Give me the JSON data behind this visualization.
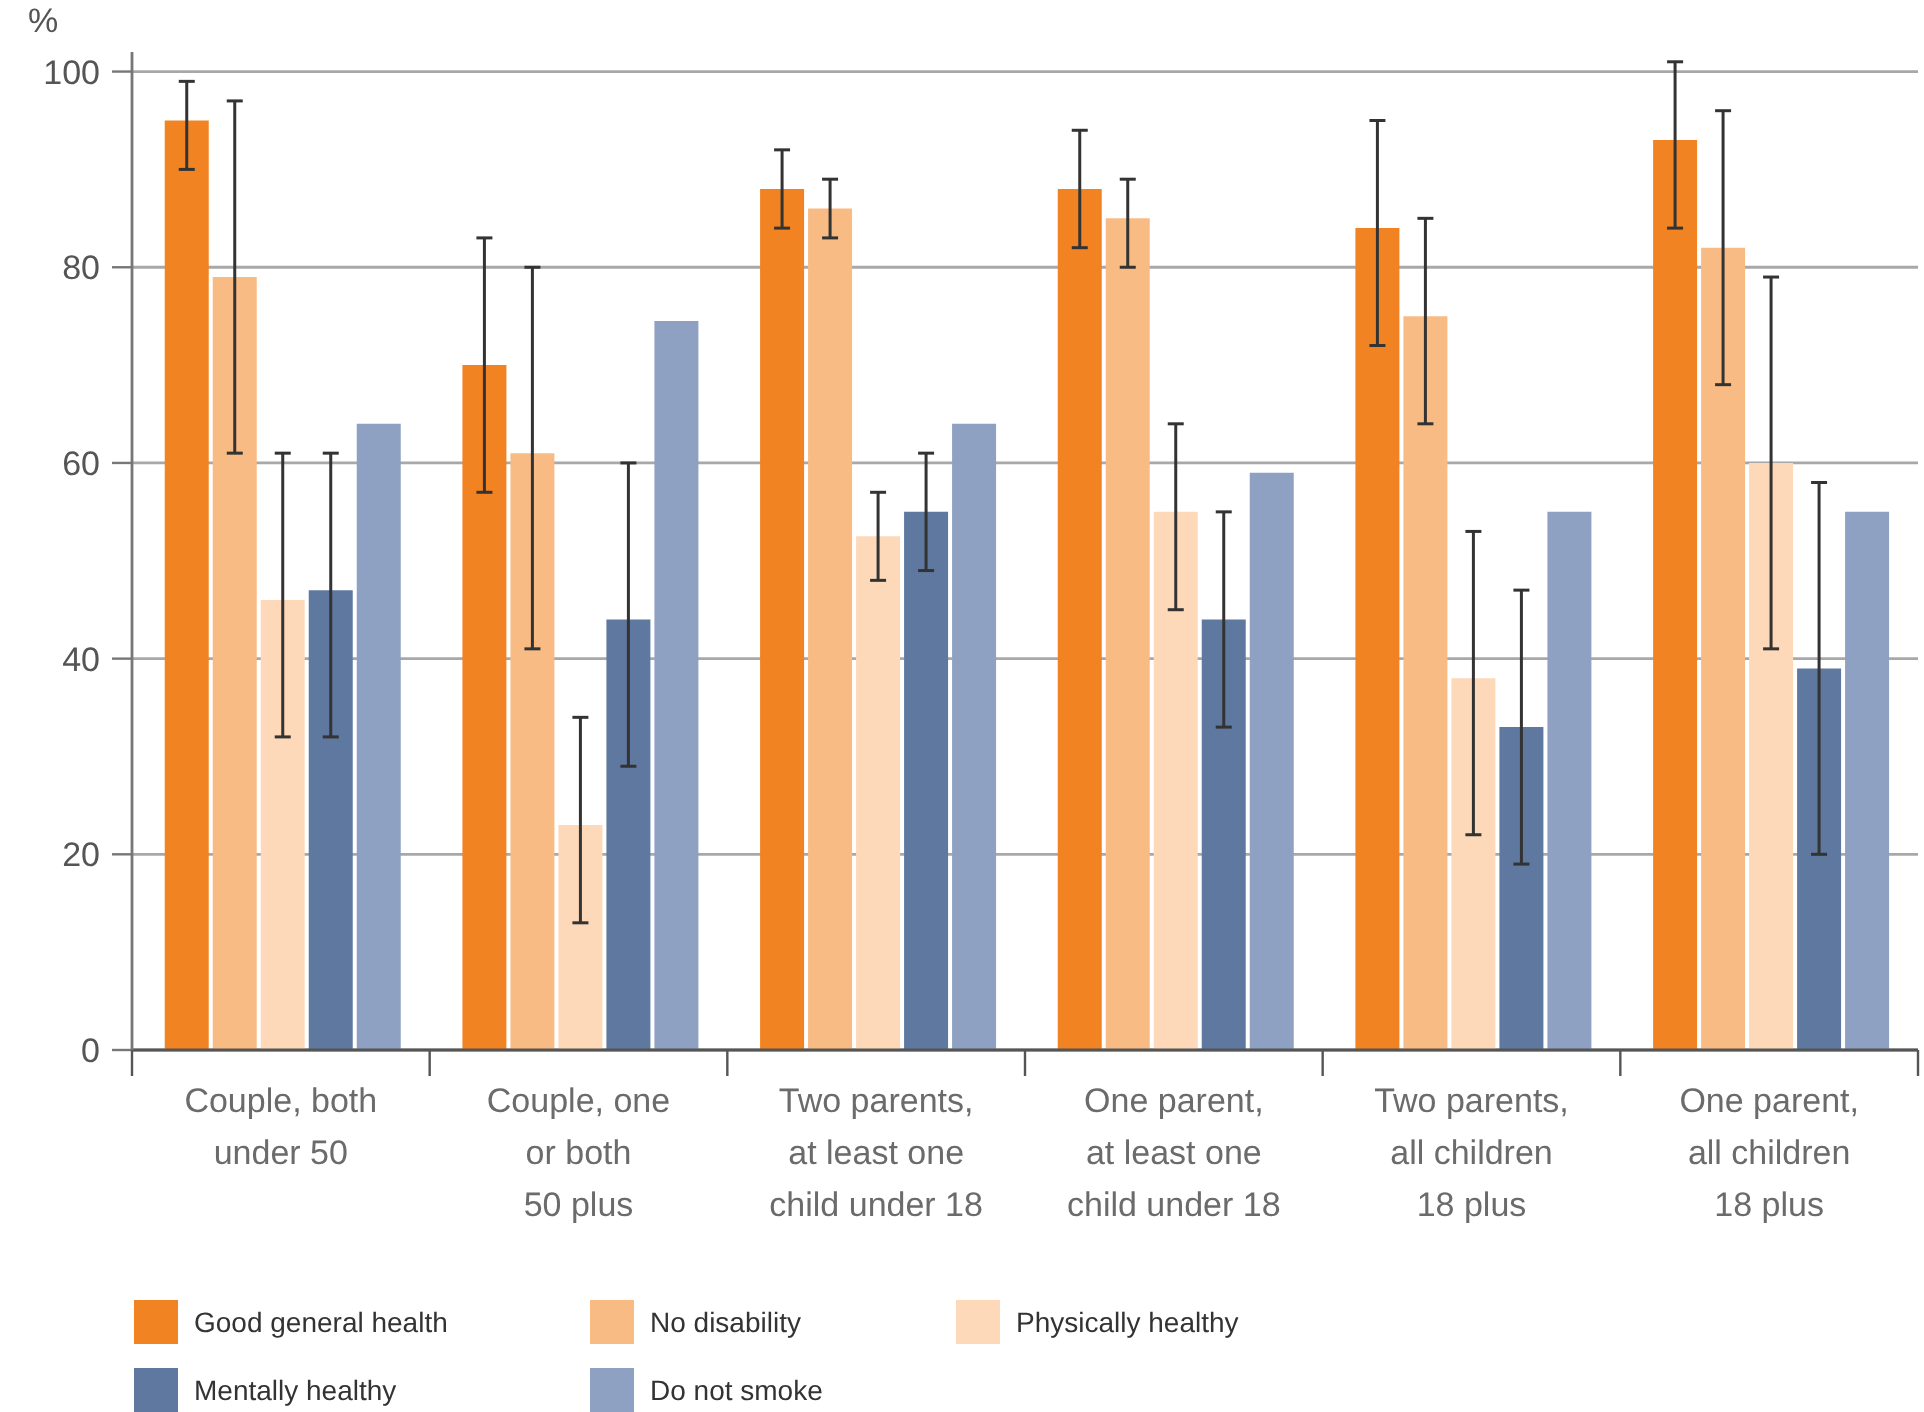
{
  "chart_data": {
    "type": "bar",
    "ylabel": "%",
    "categories": [
      "Couple, both\nunder 50",
      "Couple, one\nor both\n50 plus",
      "Two parents,\nat least one\nchild under 18",
      "One parent,\nat least one\nchild under 18",
      "Two parents,\nall children\n18 plus",
      "One parent,\nall children\n18 plus"
    ],
    "series": [
      {
        "name": "Good general health",
        "color": "#f28322",
        "values": [
          95,
          70,
          88,
          88,
          84,
          93
        ],
        "errors": [
          [
            90,
            99
          ],
          [
            57,
            83
          ],
          [
            84,
            92
          ],
          [
            82,
            94
          ],
          [
            72,
            95
          ],
          [
            84,
            101
          ]
        ]
      },
      {
        "name": "No disability",
        "color": "#f9bb84",
        "values": [
          79,
          61,
          86,
          85,
          75,
          82
        ],
        "errors": [
          [
            61,
            97
          ],
          [
            41,
            80
          ],
          [
            83,
            89
          ],
          [
            80,
            89
          ],
          [
            64,
            85
          ],
          [
            68,
            96
          ]
        ]
      },
      {
        "name": "Physically healthy",
        "color": "#fdd9ba",
        "values": [
          46,
          23,
          52.5,
          55,
          38,
          60
        ],
        "errors": [
          [
            32,
            61
          ],
          [
            13,
            34
          ],
          [
            48,
            57
          ],
          [
            45,
            64
          ],
          [
            22,
            53
          ],
          [
            41,
            79
          ]
        ]
      },
      {
        "name": "Mentally healthy",
        "color": "#5f789f",
        "values": [
          47,
          44,
          55,
          44,
          33,
          39
        ],
        "errors": [
          [
            32,
            61
          ],
          [
            29,
            60
          ],
          [
            49,
            61
          ],
          [
            33,
            55
          ],
          [
            19,
            47
          ],
          [
            20,
            58
          ]
        ]
      },
      {
        "name": "Do not smoke",
        "color": "#8fa1c3",
        "values": [
          64,
          74.5,
          64,
          59,
          55,
          55
        ]
      }
    ],
    "ylim": [
      0,
      102
    ],
    "yticks": [
      0,
      20,
      40,
      60,
      80,
      100
    ],
    "grid": "y",
    "legend": "bottom left"
  }
}
